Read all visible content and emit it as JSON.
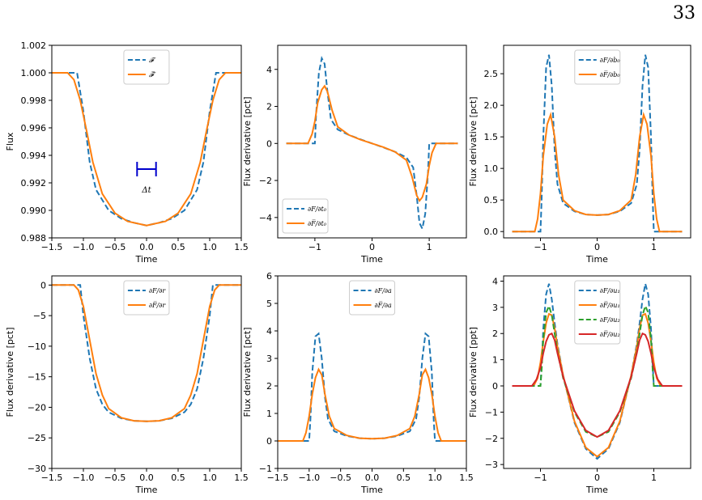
{
  "page_number": "33",
  "colors": {
    "blue": "#1f77b4",
    "orange": "#ff7f0e",
    "green": "#2ca02c",
    "red": "#d62728",
    "marker": "#0000cc"
  },
  "chart_data": [
    {
      "type": "line",
      "xlabel": "Time",
      "ylabel": "Flux",
      "xlim": [
        -1.5,
        1.5
      ],
      "ylim": [
        0.988,
        1.002
      ],
      "xticks": [
        -1.5,
        -1.0,
        -0.5,
        0.0,
        0.5,
        1.0,
        1.5
      ],
      "xtick_labels": [
        "−1.5",
        "−1.0",
        "−0.5",
        "0.0",
        "0.5",
        "1.0",
        "1.5"
      ],
      "yticks": [
        0.988,
        0.99,
        0.992,
        0.994,
        0.996,
        0.998,
        1.0,
        1.002
      ],
      "ytick_labels": [
        "0.988",
        "0.990",
        "0.992",
        "0.994",
        "0.996",
        "0.998",
        "1.000",
        "1.002"
      ],
      "legend_position": "top-center",
      "annotation": {
        "text": "Δt",
        "x": -0.0,
        "y": 0.993,
        "half_width": 0.15,
        "label_y": 0.9913
      },
      "series": [
        {
          "name": "𝓕",
          "color": "#1f77b4",
          "dashed": true,
          "x": [
            -1.5,
            -1.2,
            -1.1,
            -1.0,
            -0.9,
            -0.8,
            -0.6,
            -0.4,
            -0.2,
            0.0,
            0.2,
            0.4,
            0.6,
            0.8,
            0.9,
            1.0,
            1.1,
            1.2,
            1.5
          ],
          "y": [
            1.0,
            1.0,
            1.0,
            0.9972,
            0.9935,
            0.9915,
            0.99,
            0.9894,
            0.9891,
            0.9889,
            0.9891,
            0.9894,
            0.99,
            0.9915,
            0.9935,
            0.9972,
            1.0,
            1.0,
            1.0
          ]
        },
        {
          "name": "𝓕̅",
          "color": "#ff7f0e",
          "dashed": false,
          "x": [
            -1.5,
            -1.25,
            -1.15,
            -1.05,
            -0.95,
            -0.85,
            -0.7,
            -0.5,
            -0.3,
            0.0,
            0.3,
            0.5,
            0.7,
            0.85,
            0.95,
            1.05,
            1.15,
            1.25,
            1.5
          ],
          "y": [
            1.0,
            1.0,
            0.9995,
            0.998,
            0.9958,
            0.9935,
            0.9912,
            0.9898,
            0.9892,
            0.9889,
            0.9892,
            0.9898,
            0.9912,
            0.9935,
            0.9958,
            0.998,
            0.9995,
            1.0,
            1.0
          ]
        }
      ]
    },
    {
      "type": "line",
      "xlabel": "Time",
      "ylabel": "Flux derivative [pct]",
      "xlim": [
        -1.65,
        1.65
      ],
      "ylim": [
        -5.1,
        5.3
      ],
      "xticks": [
        -1,
        0,
        1
      ],
      "xtick_labels": [
        "−1",
        "0",
        "1"
      ],
      "yticks": [
        -4,
        -2,
        0,
        2,
        4
      ],
      "ytick_labels": [
        "−4",
        "−2",
        "0",
        "2",
        "4"
      ],
      "legend_position": "lower-left",
      "series": [
        {
          "name": "∂F/∂t₀",
          "color": "#1f77b4",
          "dashed": true,
          "x": [
            -1.5,
            -1.0,
            -0.98,
            -0.93,
            -0.88,
            -0.83,
            -0.78,
            -0.72,
            -0.6,
            -0.4,
            -0.2,
            0.0,
            0.2,
            0.4,
            0.6,
            0.72,
            0.78,
            0.83,
            0.88,
            0.93,
            0.98,
            1.0,
            1.5
          ],
          "y": [
            0,
            0,
            1.5,
            3.8,
            4.6,
            4.3,
            2.8,
            1.3,
            0.75,
            0.45,
            0.22,
            0.0,
            -0.22,
            -0.45,
            -0.75,
            -1.3,
            -2.8,
            -4.3,
            -4.6,
            -3.8,
            -1.5,
            0,
            0
          ]
        },
        {
          "name": "∂F̅/∂t₀",
          "color": "#ff7f0e",
          "dashed": false,
          "x": [
            -1.5,
            -1.12,
            -1.05,
            -1.0,
            -0.95,
            -0.88,
            -0.83,
            -0.78,
            -0.7,
            -0.6,
            -0.4,
            -0.2,
            0.0,
            0.2,
            0.4,
            0.6,
            0.7,
            0.78,
            0.83,
            0.88,
            0.95,
            1.0,
            1.05,
            1.12,
            1.5
          ],
          "y": [
            0,
            0,
            0.5,
            1.2,
            2.2,
            2.9,
            3.1,
            2.8,
            1.8,
            0.9,
            0.45,
            0.2,
            0.0,
            -0.2,
            -0.45,
            -0.9,
            -1.8,
            -2.8,
            -3.1,
            -2.9,
            -2.2,
            -1.2,
            -0.5,
            0,
            0
          ]
        }
      ]
    },
    {
      "type": "line",
      "xlabel": "Time",
      "ylabel": "Flux derivative [pct]",
      "xlim": [
        -1.65,
        1.65
      ],
      "ylim": [
        -0.1,
        2.95
      ],
      "xticks": [
        -1,
        0,
        1
      ],
      "xtick_labels": [
        "−1",
        "0",
        "1"
      ],
      "yticks": [
        0.0,
        0.5,
        1.0,
        1.5,
        2.0,
        2.5
      ],
      "ytick_labels": [
        "0.0",
        "0.5",
        "1.0",
        "1.5",
        "2.0",
        "2.5"
      ],
      "legend_position": "top-center",
      "series": [
        {
          "name": "∂F/∂b₀",
          "color": "#1f77b4",
          "dashed": true,
          "x": [
            -1.5,
            -1.0,
            -0.98,
            -0.95,
            -0.9,
            -0.85,
            -0.8,
            -0.75,
            -0.7,
            -0.6,
            -0.4,
            -0.2,
            0.0,
            0.2,
            0.4,
            0.6,
            0.7,
            0.75,
            0.8,
            0.85,
            0.9,
            0.95,
            0.98,
            1.0,
            1.5
          ],
          "y": [
            0,
            0,
            0.5,
            1.5,
            2.6,
            2.8,
            2.3,
            1.3,
            0.75,
            0.45,
            0.32,
            0.27,
            0.26,
            0.27,
            0.32,
            0.45,
            0.75,
            1.3,
            2.3,
            2.8,
            2.6,
            1.5,
            0.5,
            0,
            0
          ]
        },
        {
          "name": "∂F̅/∂b₀",
          "color": "#ff7f0e",
          "dashed": false,
          "x": [
            -1.5,
            -1.1,
            -1.05,
            -1.0,
            -0.95,
            -0.88,
            -0.82,
            -0.75,
            -0.68,
            -0.6,
            -0.4,
            -0.2,
            0.0,
            0.2,
            0.4,
            0.6,
            0.68,
            0.75,
            0.82,
            0.88,
            0.95,
            1.0,
            1.05,
            1.1,
            1.5
          ],
          "y": [
            0,
            0,
            0.2,
            0.6,
            1.2,
            1.7,
            1.85,
            1.5,
            0.9,
            0.5,
            0.33,
            0.27,
            0.26,
            0.27,
            0.33,
            0.5,
            0.9,
            1.5,
            1.85,
            1.7,
            1.2,
            0.6,
            0.2,
            0,
            0
          ]
        }
      ]
    },
    {
      "type": "line",
      "xlabel": "Time",
      "ylabel": "Flux derivative [pct]",
      "xlim": [
        -1.5,
        1.5
      ],
      "ylim": [
        -30,
        1.5
      ],
      "xticks": [
        -1.5,
        -1.0,
        -0.5,
        0.0,
        0.5,
        1.0,
        1.5
      ],
      "xtick_labels": [
        "−1.5",
        "−1.0",
        "−0.5",
        "0.0",
        "0.5",
        "1.0",
        "1.5"
      ],
      "yticks": [
        -30,
        -25,
        -20,
        -15,
        -10,
        -5,
        0
      ],
      "ytick_labels": [
        "−30",
        "−25",
        "−20",
        "−15",
        "−10",
        "−5",
        "0"
      ],
      "legend_position": "top-center",
      "series": [
        {
          "name": "∂F/∂r",
          "color": "#1f77b4",
          "dashed": true,
          "x": [
            -1.5,
            -1.1,
            -1.05,
            -1.0,
            -0.9,
            -0.8,
            -0.7,
            -0.6,
            -0.4,
            -0.2,
            0.0,
            0.2,
            0.4,
            0.6,
            0.7,
            0.8,
            0.9,
            1.0,
            1.05,
            1.1,
            1.5
          ],
          "y": [
            0,
            0,
            0,
            -5,
            -12,
            -17,
            -19.5,
            -20.8,
            -21.8,
            -22.2,
            -22.3,
            -22.2,
            -21.8,
            -20.8,
            -19.5,
            -17,
            -12,
            -5,
            0,
            0,
            0
          ]
        },
        {
          "name": "∂F̅/∂r",
          "color": "#ff7f0e",
          "dashed": false,
          "x": [
            -1.5,
            -1.15,
            -1.08,
            -1.0,
            -0.9,
            -0.8,
            -0.7,
            -0.6,
            -0.4,
            -0.2,
            0.0,
            0.2,
            0.4,
            0.6,
            0.7,
            0.8,
            0.9,
            1.0,
            1.08,
            1.15,
            1.5
          ],
          "y": [
            0,
            0,
            -0.8,
            -3.5,
            -9,
            -14.5,
            -18,
            -20.2,
            -21.7,
            -22.2,
            -22.3,
            -22.2,
            -21.7,
            -20.2,
            -18,
            -14.5,
            -9,
            -3.5,
            -0.8,
            0,
            0
          ]
        }
      ]
    },
    {
      "type": "line",
      "xlabel": "Time",
      "ylabel": "Flux derivative [pct]",
      "xlim": [
        -1.5,
        1.5
      ],
      "ylim": [
        -1,
        6
      ],
      "xticks": [
        -1.5,
        -1.0,
        -0.5,
        0.0,
        0.5,
        1.0,
        1.5
      ],
      "xtick_labels": [
        "−1.5",
        "−1.0",
        "−0.5",
        "0.0",
        "0.5",
        "1.0",
        "1.5"
      ],
      "yticks": [
        -1,
        0,
        1,
        2,
        3,
        4,
        5,
        6
      ],
      "ytick_labels": [
        "−1",
        "0",
        "1",
        "2",
        "3",
        "4",
        "5",
        "6"
      ],
      "legend_position": "top-center",
      "series": [
        {
          "name": "∂F/∂a",
          "color": "#1f77b4",
          "dashed": true,
          "x": [
            -1.5,
            -1.0,
            -0.98,
            -0.95,
            -0.9,
            -0.85,
            -0.8,
            -0.75,
            -0.7,
            -0.6,
            -0.4,
            -0.2,
            0.0,
            0.2,
            0.4,
            0.6,
            0.7,
            0.75,
            0.8,
            0.85,
            0.9,
            0.95,
            0.98,
            1.0,
            1.5
          ],
          "y": [
            0,
            0,
            0.8,
            2.5,
            3.8,
            3.9,
            3.0,
            1.6,
            0.8,
            0.35,
            0.18,
            0.1,
            0.08,
            0.1,
            0.18,
            0.35,
            0.8,
            1.6,
            3.0,
            3.9,
            3.8,
            2.5,
            0.8,
            0,
            0
          ]
        },
        {
          "name": "∂F̅/∂a",
          "color": "#ff7f0e",
          "dashed": false,
          "x": [
            -1.5,
            -1.1,
            -1.05,
            -1.0,
            -0.95,
            -0.9,
            -0.85,
            -0.8,
            -0.75,
            -0.68,
            -0.6,
            -0.4,
            -0.2,
            0.0,
            0.2,
            0.4,
            0.6,
            0.68,
            0.75,
            0.8,
            0.85,
            0.9,
            0.95,
            1.0,
            1.05,
            1.1,
            1.5
          ],
          "y": [
            0,
            0,
            0.3,
            0.9,
            1.7,
            2.3,
            2.6,
            2.4,
            1.7,
            0.9,
            0.45,
            0.2,
            0.1,
            0.08,
            0.1,
            0.2,
            0.45,
            0.9,
            1.7,
            2.4,
            2.6,
            2.3,
            1.7,
            0.9,
            0.3,
            0,
            0
          ]
        }
      ]
    },
    {
      "type": "line",
      "xlabel": "Time",
      "ylabel": "Flux derivative [ppt]",
      "xlim": [
        -1.65,
        1.65
      ],
      "ylim": [
        -3.15,
        4.2
      ],
      "xticks": [
        -1,
        0,
        1
      ],
      "xtick_labels": [
        "−1",
        "0",
        "1"
      ],
      "yticks": [
        -3,
        -2,
        -1,
        0,
        1,
        2,
        3,
        4
      ],
      "ytick_labels": [
        "−3",
        "−2",
        "−1",
        "0",
        "1",
        "2",
        "3",
        "4"
      ],
      "legend_position": "top-center",
      "series": [
        {
          "name": "∂F/∂u₁",
          "color": "#1f77b4",
          "dashed": true,
          "x": [
            -1.5,
            -1.0,
            -0.98,
            -0.95,
            -0.9,
            -0.85,
            -0.8,
            -0.75,
            -0.7,
            -0.6,
            -0.4,
            -0.2,
            0.0,
            0.2,
            0.4,
            0.6,
            0.7,
            0.75,
            0.8,
            0.85,
            0.9,
            0.95,
            0.98,
            1.0,
            1.5
          ],
          "y": [
            0,
            0,
            0.8,
            2.2,
            3.5,
            3.9,
            3.3,
            2.4,
            1.6,
            0.4,
            -1.4,
            -2.4,
            -2.78,
            -2.4,
            -1.4,
            0.4,
            1.6,
            2.4,
            3.3,
            3.9,
            3.5,
            2.2,
            0.8,
            0,
            0
          ]
        },
        {
          "name": "∂F̅/∂u₁",
          "color": "#ff7f0e",
          "dashed": false,
          "x": [
            -1.5,
            -1.12,
            -1.05,
            -1.0,
            -0.95,
            -0.9,
            -0.85,
            -0.8,
            -0.75,
            -0.7,
            -0.6,
            -0.4,
            -0.2,
            0.0,
            0.2,
            0.4,
            0.6,
            0.7,
            0.75,
            0.8,
            0.85,
            0.9,
            0.95,
            1.0,
            1.05,
            1.12,
            1.5
          ],
          "y": [
            0,
            0,
            0.3,
            0.9,
            1.7,
            2.4,
            2.75,
            2.7,
            2.2,
            1.5,
            0.4,
            -1.35,
            -2.35,
            -2.7,
            -2.35,
            -1.35,
            0.4,
            1.5,
            2.2,
            2.7,
            2.75,
            2.4,
            1.7,
            0.9,
            0.3,
            0,
            0
          ]
        },
        {
          "name": "∂F/∂u₂",
          "color": "#2ca02c",
          "dashed": true,
          "x": [
            -1.5,
            -1.0,
            -0.98,
            -0.95,
            -0.9,
            -0.85,
            -0.8,
            -0.75,
            -0.7,
            -0.6,
            -0.4,
            -0.2,
            0.0,
            0.2,
            0.4,
            0.6,
            0.7,
            0.75,
            0.8,
            0.85,
            0.9,
            0.95,
            0.98,
            1.0,
            1.5
          ],
          "y": [
            0,
            0,
            0.6,
            1.8,
            2.8,
            3.05,
            2.7,
            2.0,
            1.3,
            0.3,
            -1.0,
            -1.75,
            -1.95,
            -1.75,
            -1.0,
            0.3,
            1.3,
            2.0,
            2.7,
            3.05,
            2.8,
            1.8,
            0.6,
            0,
            0
          ]
        },
        {
          "name": "∂F̅/∂u₂",
          "color": "#d62728",
          "dashed": false,
          "x": [
            -1.5,
            -1.15,
            -1.07,
            -1.0,
            -0.95,
            -0.9,
            -0.85,
            -0.8,
            -0.75,
            -0.7,
            -0.6,
            -0.4,
            -0.2,
            0.0,
            0.2,
            0.4,
            0.6,
            0.7,
            0.75,
            0.8,
            0.85,
            0.9,
            0.95,
            1.0,
            1.07,
            1.15,
            1.5
          ],
          "y": [
            0,
            0,
            0.25,
            0.7,
            1.25,
            1.7,
            1.95,
            2.0,
            1.75,
            1.25,
            0.35,
            -0.95,
            -1.7,
            -1.95,
            -1.7,
            -0.95,
            0.35,
            1.25,
            1.75,
            2.0,
            1.95,
            1.7,
            1.25,
            0.7,
            0.25,
            0,
            0
          ]
        }
      ]
    }
  ]
}
